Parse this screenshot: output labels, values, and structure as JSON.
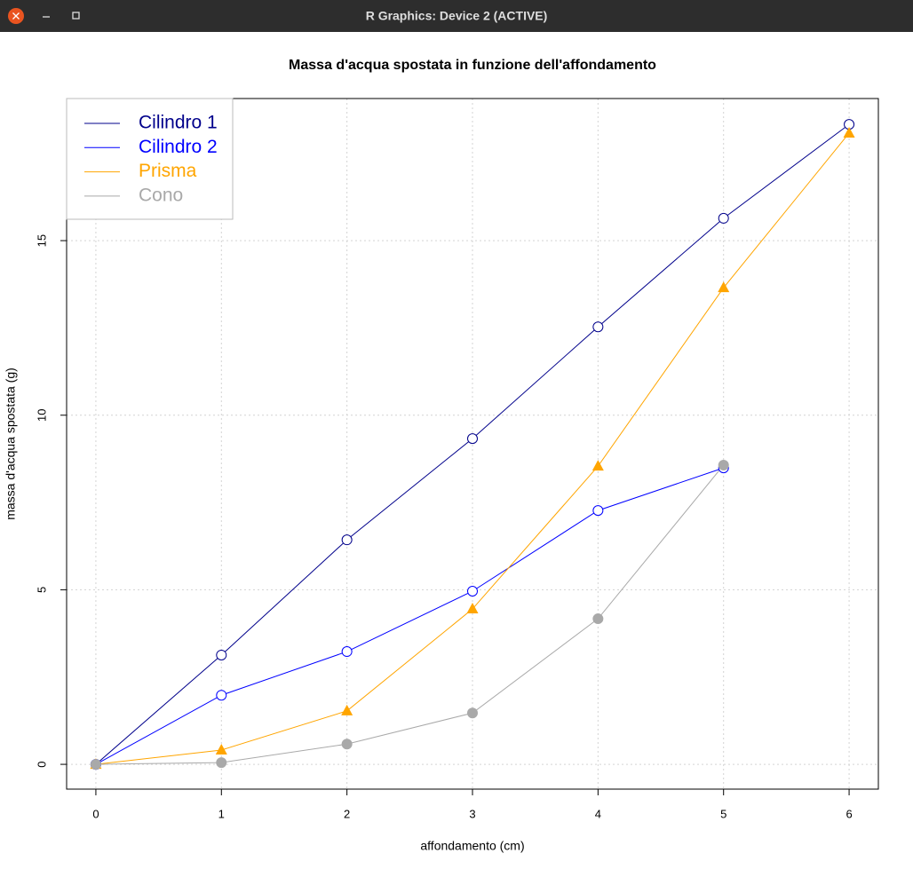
{
  "window": {
    "title": "R Graphics: Device 2 (ACTIVE)"
  },
  "chart_data": {
    "type": "line",
    "title": "Massa d'acqua spostata in funzione dell'affondamento",
    "x_label": "affondamento (cm)",
    "y_label": "massa d'acqua spostata (g)",
    "x": [
      0,
      1,
      2,
      3,
      4,
      5,
      6
    ],
    "series": [
      {
        "name": "Cilindro 1",
        "color": "#00008b",
        "marker": "circle-open",
        "values": [
          0,
          3.13,
          6.43,
          9.33,
          12.53,
          15.64,
          18.33
        ]
      },
      {
        "name": "Cilindro 2",
        "color": "#0000ff",
        "marker": "circle-open",
        "values": [
          0,
          1.98,
          3.23,
          4.96,
          7.27,
          8.49,
          null
        ]
      },
      {
        "name": "Prisma",
        "color": "#ffa500",
        "marker": "triangle-filled",
        "values": [
          0,
          0.41,
          1.53,
          4.45,
          8.54,
          13.65,
          18.08
        ]
      },
      {
        "name": "Cono",
        "color": "#a9a9a9",
        "marker": "circle-filled",
        "values": [
          0,
          0.05,
          0.58,
          1.47,
          4.17,
          8.57,
          null
        ]
      }
    ],
    "xlim": [
      -0.233,
      6.233
    ],
    "ylim": [
      -0.71,
      19.07
    ],
    "xticks": [
      0,
      1,
      2,
      3,
      4,
      5,
      6
    ],
    "yticks": [
      0,
      5,
      10,
      15
    ],
    "grid": true,
    "legend_position": "top-left"
  }
}
